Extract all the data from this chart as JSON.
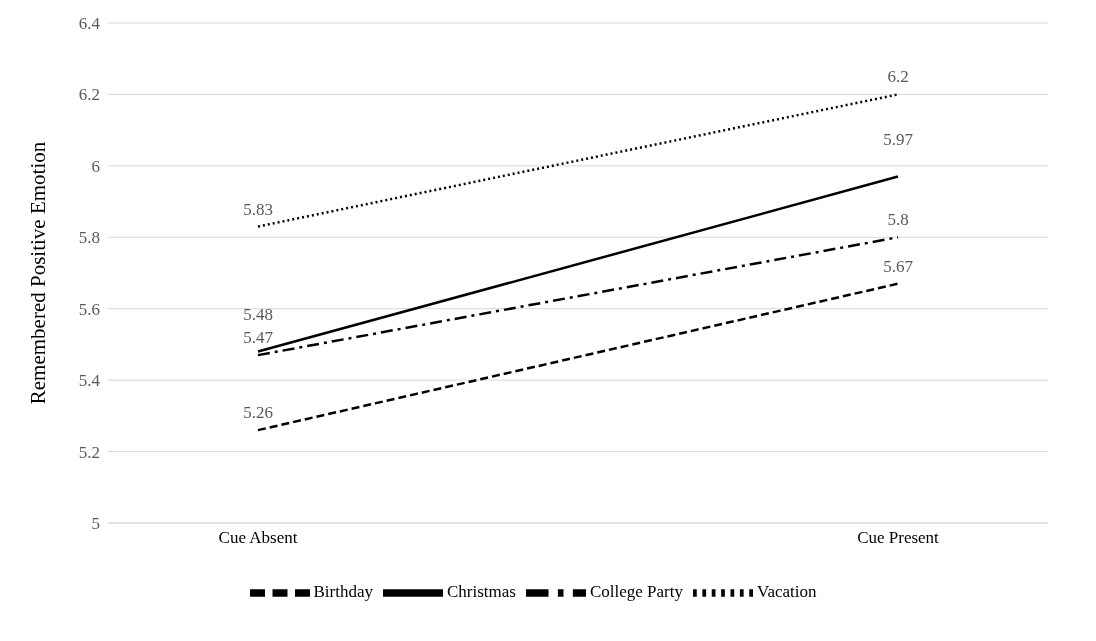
{
  "chart_data": {
    "type": "line",
    "ylabel": "Remembered Positive Emotion",
    "categories": [
      "Cue Absent",
      "Cue Present"
    ],
    "series": [
      {
        "name": "Christmas",
        "color": "#000000",
        "line_style": "solid",
        "values": [
          5.48,
          5.97
        ]
      },
      {
        "name": "Birthday",
        "color": "#000000",
        "line_style": "dashed",
        "values": [
          5.26,
          5.67
        ]
      },
      {
        "name": "Vacation",
        "color": "#000000",
        "line_style": "dotted",
        "values": [
          5.83,
          6.2
        ]
      },
      {
        "name": "College Party",
        "color": "#000000",
        "line_style": "dashdot",
        "values": [
          5.47,
          5.8
        ]
      }
    ],
    "ylim": [
      5,
      6.4
    ],
    "yticks": [
      5,
      5.2,
      5.4,
      5.6,
      5.8,
      6,
      6.2,
      6.4
    ],
    "grid": "y",
    "legend": "bottom",
    "data_labels": true,
    "marker": "none"
  }
}
